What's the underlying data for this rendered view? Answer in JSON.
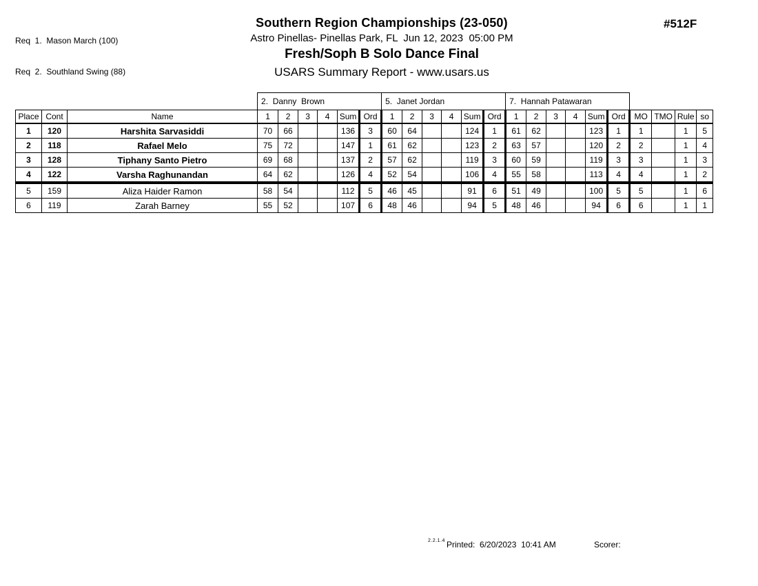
{
  "header": {
    "requirements": [
      "Req  1.  Mason March (100)",
      "Req  2.  Southland Swing (88)"
    ],
    "event_code": "#512F",
    "championship_title": "Southern Region Championships (23-050)",
    "venue_datetime": "Astro Pinellas- Pinellas Park, FL  Jun 12, 2023  05:00 PM",
    "event_title": "Fresh/Soph B Solo Dance Final",
    "report_title": "USARS Summary Report - www.usars.us"
  },
  "table": {
    "judge_headers": [
      "2.  Danny  Brown",
      "5.  Janet Jordan",
      "7.  Hannah Patawaran"
    ],
    "left_headers": [
      "Place",
      "Cont",
      "Name"
    ],
    "judge_sub_headers": [
      "1",
      "2",
      "3",
      "4",
      "Sum",
      "Ord"
    ],
    "right_headers": [
      "MO",
      "TMO",
      "Rule",
      "so"
    ],
    "rows": [
      {
        "place": "1",
        "cont": "120",
        "name": "Harshita Sarvasiddi",
        "bold": true,
        "judges": [
          {
            "scores": [
              "70",
              "66",
              "",
              ""
            ],
            "sum": "136",
            "ord": "3"
          },
          {
            "scores": [
              "60",
              "64",
              "",
              ""
            ],
            "sum": "124",
            "ord": "1"
          },
          {
            "scores": [
              "61",
              "62",
              "",
              ""
            ],
            "sum": "123",
            "ord": "1"
          }
        ],
        "mo": "1",
        "tmo": "",
        "rule": "1",
        "so": "5"
      },
      {
        "place": "2",
        "cont": "118",
        "name": "Rafael Melo",
        "bold": true,
        "judges": [
          {
            "scores": [
              "75",
              "72",
              "",
              ""
            ],
            "sum": "147",
            "ord": "1"
          },
          {
            "scores": [
              "61",
              "62",
              "",
              ""
            ],
            "sum": "123",
            "ord": "2"
          },
          {
            "scores": [
              "63",
              "57",
              "",
              ""
            ],
            "sum": "120",
            "ord": "2"
          }
        ],
        "mo": "2",
        "tmo": "",
        "rule": "1",
        "so": "4"
      },
      {
        "place": "3",
        "cont": "128",
        "name": "Tiphany Santo Pietro",
        "bold": true,
        "judges": [
          {
            "scores": [
              "69",
              "68",
              "",
              ""
            ],
            "sum": "137",
            "ord": "2"
          },
          {
            "scores": [
              "57",
              "62",
              "",
              ""
            ],
            "sum": "119",
            "ord": "3"
          },
          {
            "scores": [
              "60",
              "59",
              "",
              ""
            ],
            "sum": "119",
            "ord": "3"
          }
        ],
        "mo": "3",
        "tmo": "",
        "rule": "1",
        "so": "3"
      },
      {
        "place": "4",
        "cont": "122",
        "name": "Varsha Raghunandan",
        "bold": true,
        "judges": [
          {
            "scores": [
              "64",
              "62",
              "",
              ""
            ],
            "sum": "126",
            "ord": "4"
          },
          {
            "scores": [
              "52",
              "54",
              "",
              ""
            ],
            "sum": "106",
            "ord": "4"
          },
          {
            "scores": [
              "55",
              "58",
              "",
              ""
            ],
            "sum": "113",
            "ord": "4"
          }
        ],
        "mo": "4",
        "tmo": "",
        "rule": "1",
        "so": "2"
      },
      {
        "place": "5",
        "cont": "159",
        "name": "Aliza Haider Ramon",
        "bold": false,
        "judges": [
          {
            "scores": [
              "58",
              "54",
              "",
              ""
            ],
            "sum": "112",
            "ord": "5"
          },
          {
            "scores": [
              "46",
              "45",
              "",
              ""
            ],
            "sum": "91",
            "ord": "6"
          },
          {
            "scores": [
              "51",
              "49",
              "",
              ""
            ],
            "sum": "100",
            "ord": "5"
          }
        ],
        "mo": "5",
        "tmo": "",
        "rule": "1",
        "so": "6"
      },
      {
        "place": "6",
        "cont": "119",
        "name": "Zarah Barney",
        "bold": false,
        "judges": [
          {
            "scores": [
              "55",
              "52",
              "",
              ""
            ],
            "sum": "107",
            "ord": "6"
          },
          {
            "scores": [
              "48",
              "46",
              "",
              ""
            ],
            "sum": "94",
            "ord": "5"
          },
          {
            "scores": [
              "48",
              "46",
              "",
              ""
            ],
            "sum": "94",
            "ord": "6"
          }
        ],
        "mo": "6",
        "tmo": "",
        "rule": "1",
        "so": "1"
      }
    ]
  },
  "footer": {
    "version": "2.2.1.4",
    "printed_label": "Printed:  6/20/2023  10:41 AM",
    "scorer_label": "Scorer:"
  }
}
